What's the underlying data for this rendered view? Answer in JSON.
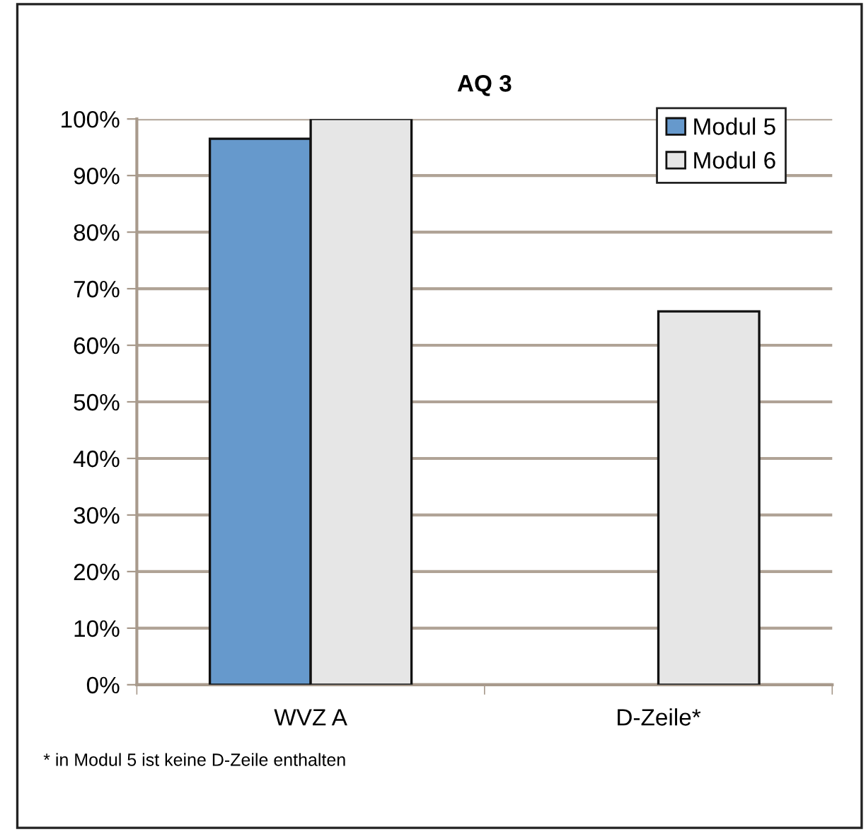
{
  "chart_data": {
    "type": "bar",
    "title": "AQ 3",
    "categories": [
      "WVZ A",
      "D-Zeile*"
    ],
    "series": [
      {
        "name": "Modul 5",
        "color": "#6699cc",
        "values": [
          96.5,
          null
        ]
      },
      {
        "name": "Modul 6",
        "color": "#e6e6e6",
        "values": [
          100,
          66
        ]
      }
    ],
    "ylim": [
      0,
      100
    ],
    "yticks": [
      {
        "value": 0,
        "label": "0%"
      },
      {
        "value": 10,
        "label": "10%"
      },
      {
        "value": 20,
        "label": "20%"
      },
      {
        "value": 30,
        "label": "30%"
      },
      {
        "value": 40,
        "label": "40%"
      },
      {
        "value": 50,
        "label": "50%"
      },
      {
        "value": 60,
        "label": "60%"
      },
      {
        "value": 70,
        "label": "70%"
      },
      {
        "value": 80,
        "label": "80%"
      },
      {
        "value": 90,
        "label": "90%"
      },
      {
        "value": 100,
        "label": "100%"
      }
    ],
    "grid": "y",
    "legend": "top right",
    "annotations": [
      "* in Modul 5 ist keine D-Zeile enthalten"
    ]
  }
}
